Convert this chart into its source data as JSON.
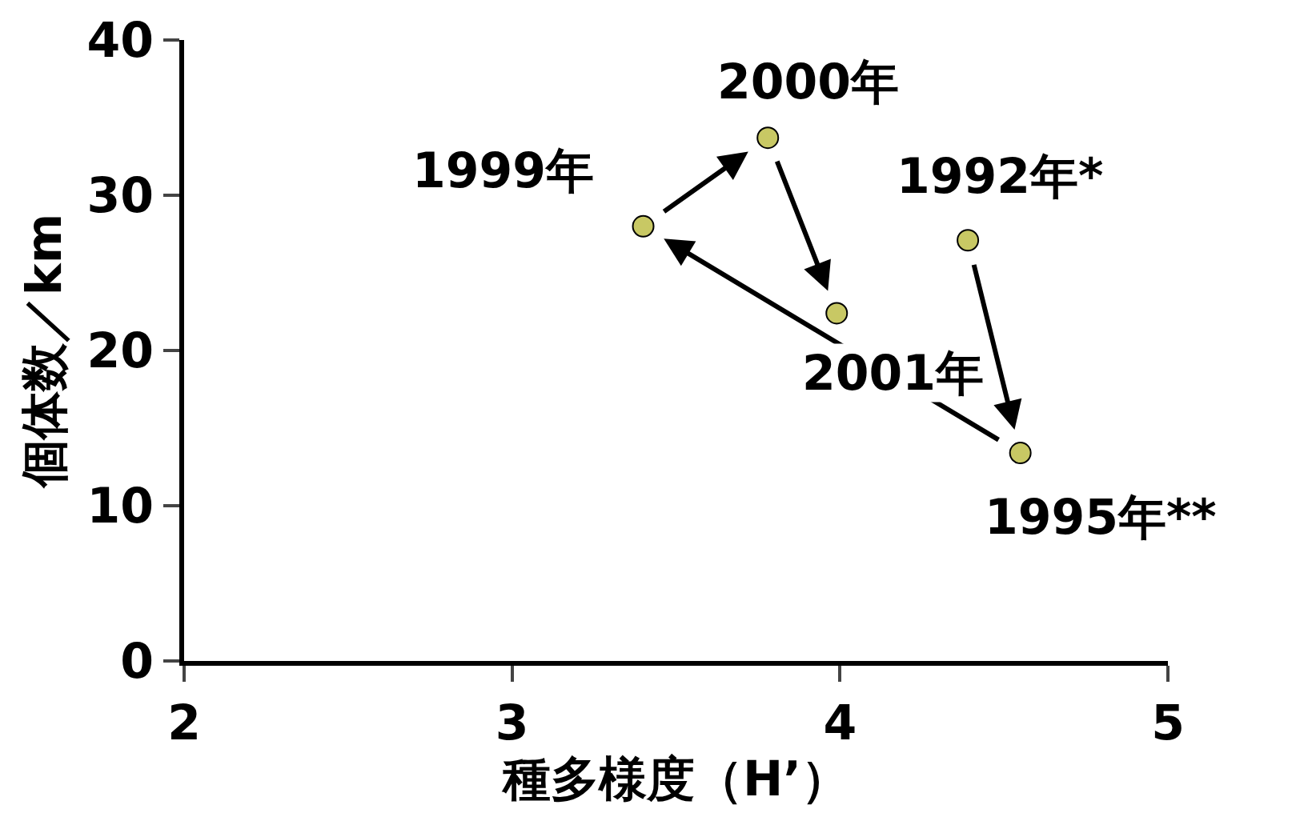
{
  "chart_data": {
    "type": "scatter",
    "xlabel": "種多様度（H’）",
    "ylabel": "個体数／km",
    "x": [
      4.39,
      4.55,
      3.4,
      3.78,
      3.99
    ],
    "series": [
      {
        "color": "#c8c864",
        "values": [
          27.1,
          13.4,
          28,
          33.7,
          22.4
        ]
      }
    ],
    "annotations": [
      {
        "text": "1992年*",
        "x": 4.39,
        "y": 27.1
      },
      {
        "text": "1995年**",
        "x": 4.55,
        "y": 13.4
      },
      {
        "text": "1999年",
        "x": 3.4,
        "y": 28
      },
      {
        "text": "2000年",
        "x": 3.78,
        "y": 33.7
      },
      {
        "text": "2001年",
        "x": 3.99,
        "y": 22.4
      }
    ],
    "xlim": [
      2,
      5
    ],
    "xticks": [
      2,
      3,
      4,
      5
    ],
    "ylim": [
      0,
      40
    ],
    "yticks": [
      0,
      10,
      20,
      30,
      40
    ],
    "marker": "circle",
    "grid": false,
    "legend": false
  }
}
